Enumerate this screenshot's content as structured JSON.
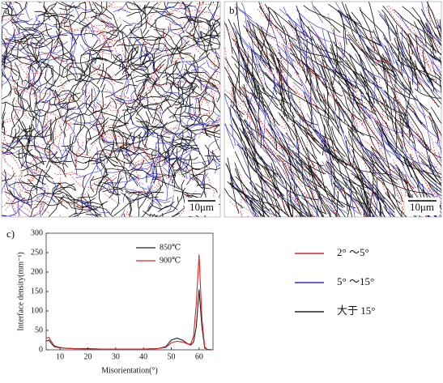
{
  "panels": [
    {
      "label": "a)",
      "scale_bar": "10μm"
    },
    {
      "label": "b)",
      "scale_bar": "10μm"
    }
  ],
  "chart_data": {
    "type": "line",
    "label": "c)",
    "x_label": "Misorientation(°)",
    "y_label": "Interface density(mm⁻¹)",
    "x": [
      5,
      6,
      7,
      8,
      10,
      12,
      15,
      20,
      25,
      30,
      35,
      40,
      45,
      48,
      50,
      52,
      54,
      56,
      57,
      58,
      59,
      60,
      61,
      62,
      63,
      65
    ],
    "series": [
      {
        "name": "850℃",
        "color": "#222222",
        "values": [
          22,
          25,
          15,
          8,
          5,
          4,
          3,
          3,
          2,
          2,
          2,
          2,
          3,
          8,
          25,
          30,
          25,
          15,
          12,
          20,
          60,
          155,
          60,
          5,
          1,
          0
        ]
      },
      {
        "name": "900℃",
        "color": "#d62728",
        "values": [
          30,
          32,
          20,
          10,
          6,
          4,
          3,
          2,
          2,
          2,
          2,
          2,
          3,
          6,
          18,
          22,
          20,
          15,
          15,
          35,
          120,
          245,
          80,
          8,
          1,
          0
        ]
      }
    ],
    "xlim": [
      5,
      65
    ],
    "ylim": [
      0,
      300
    ],
    "xticks": [
      10,
      20,
      30,
      40,
      50,
      60
    ],
    "yticks": [
      0,
      50,
      100,
      150,
      200,
      250,
      300
    ]
  },
  "legend": [
    {
      "label": "2° ～5°",
      "color": "#d62728"
    },
    {
      "label": "5° ～15°",
      "color": "#2b2bd6"
    },
    {
      "label": "大于 15°",
      "color": "#222222"
    }
  ]
}
